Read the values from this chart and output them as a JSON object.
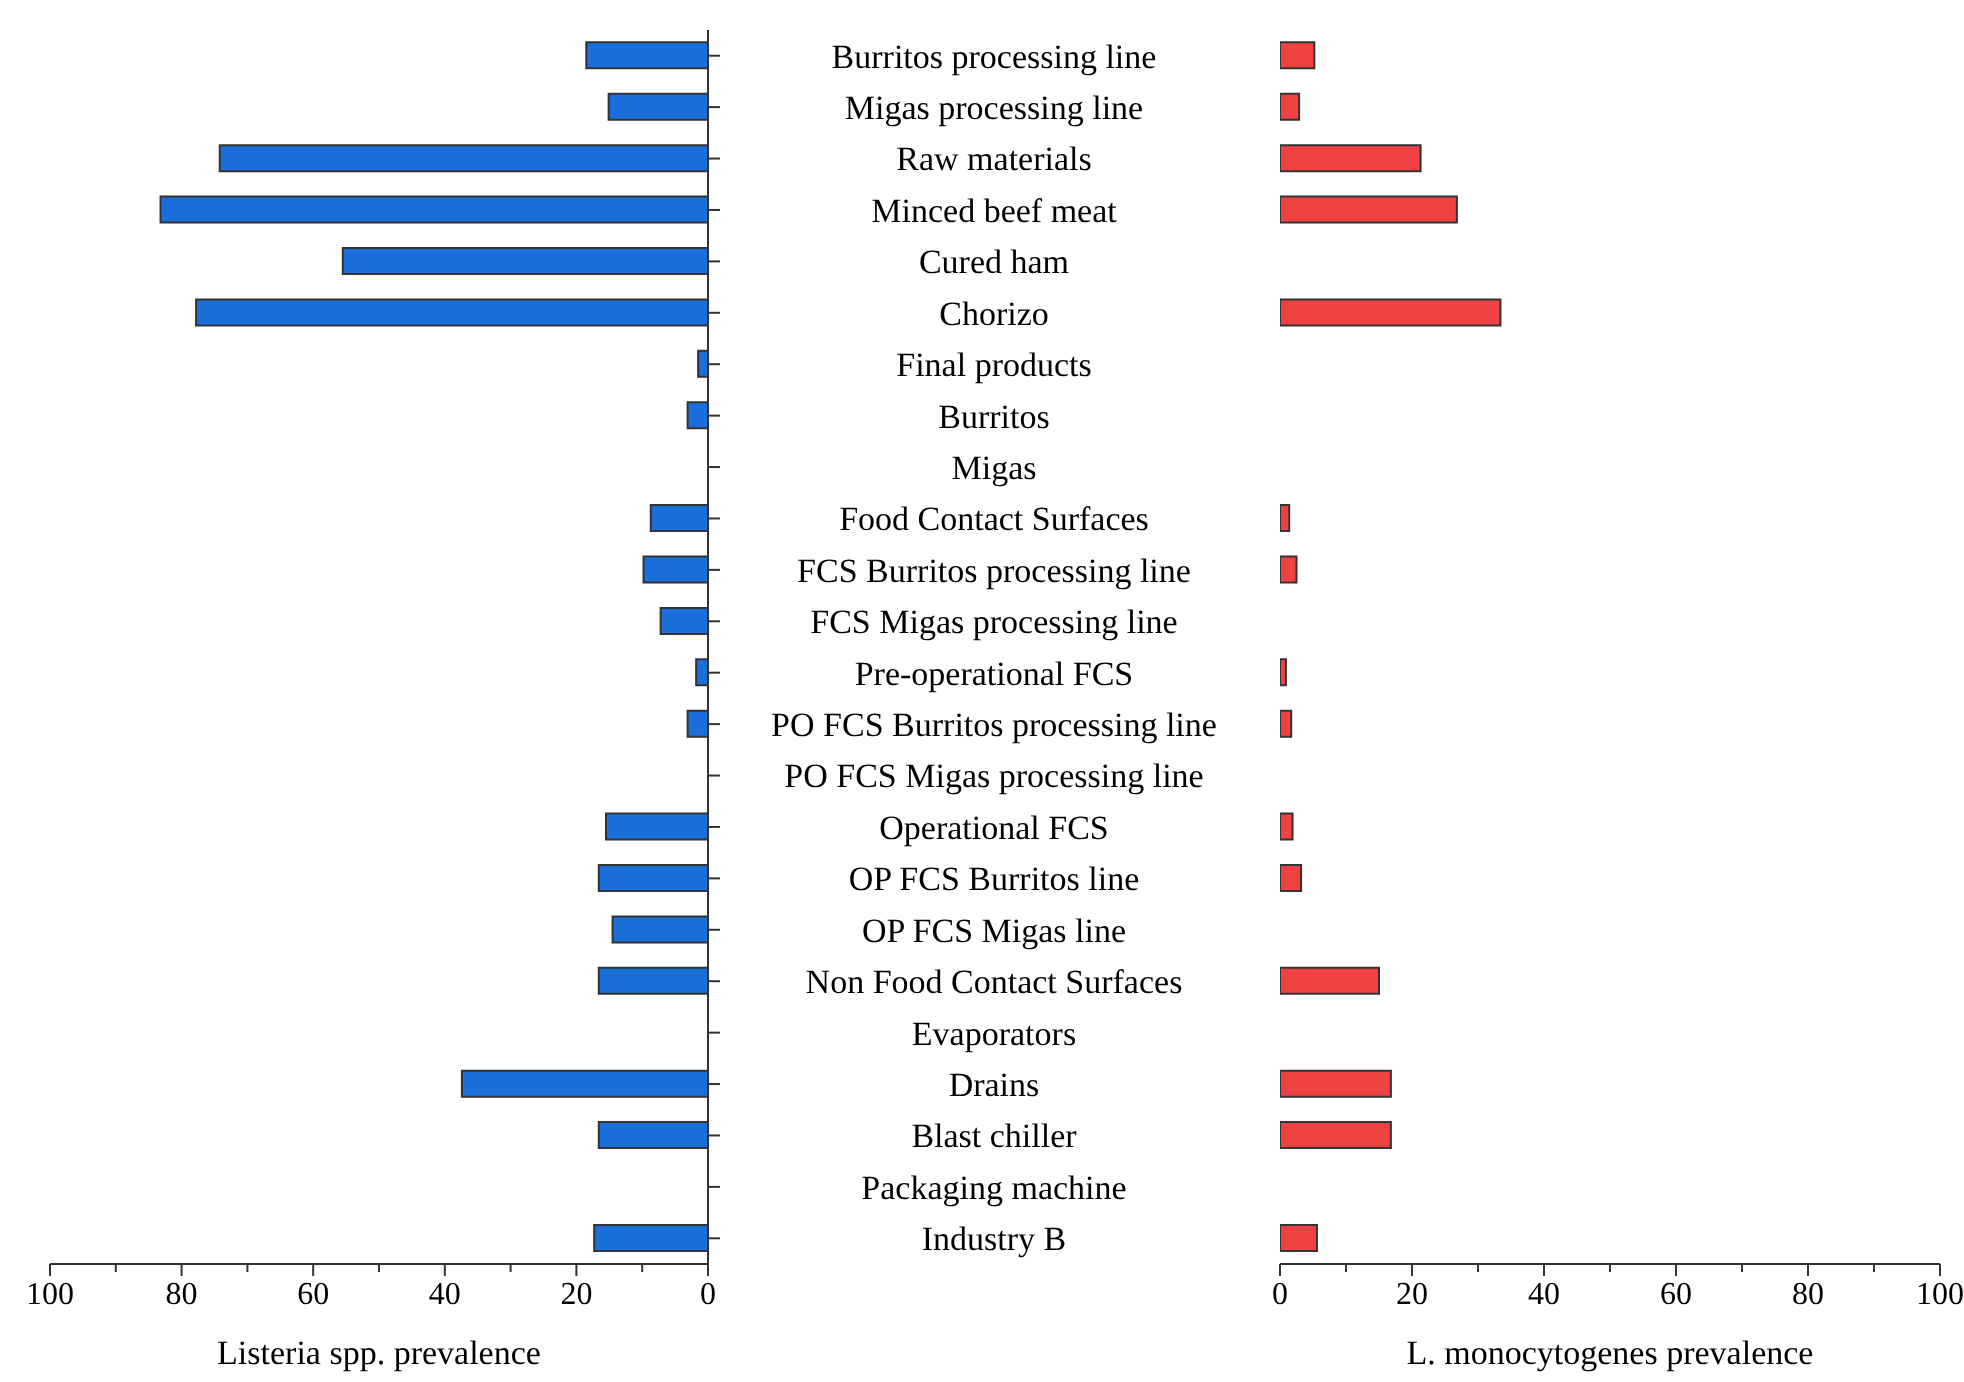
{
  "chart_data": [
    {
      "type": "bar",
      "orientation": "horizontal",
      "xlabel": "Listeria spp. prevalence",
      "color": "#1a6fdb",
      "categories": [
        "Burritos processing line",
        "Migas processing line",
        "Raw materials",
        "Minced beef meat",
        "Cured ham",
        "Chorizo",
        "Final products",
        "Burritos",
        "Migas",
        "Food Contact Surfaces",
        "FCS Burritos processing line",
        "FCS Migas processing line",
        "Pre-operational FCS",
        "PO FCS Burritos processing line",
        "PO FCS Migas processing line",
        "Operational FCS",
        "OP FCS Burritos line",
        "OP FCS Migas line",
        "Non Food Contact Surfaces",
        "Evaporators",
        "Drains",
        "Blast chiller",
        "Packaging machine",
        "Industry B"
      ],
      "values": [
        18.5,
        15.1,
        74.2,
        83.2,
        55.5,
        77.8,
        1.5,
        3.1,
        0,
        8.7,
        9.8,
        7.2,
        1.8,
        3.1,
        0,
        15.5,
        16.6,
        14.5,
        16.6,
        0,
        37.4,
        16.6,
        0,
        17.3
      ],
      "xlim": [
        100,
        0
      ],
      "xticks": [
        100,
        {
          "value": 90,
          "label": null
        },
        80,
        {
          "value": 70,
          "label": null
        },
        60,
        {
          "value": 50,
          "label": null
        },
        40,
        {
          "value": 30,
          "label": null
        },
        20,
        {
          "value": 10,
          "label": null
        },
        0
      ]
    },
    {
      "type": "bar",
      "orientation": "horizontal",
      "xlabel": "L. monocytogenes prevalence",
      "color": "#f04242",
      "tick_labels": "x",
      "categories": [
        null,
        null,
        null,
        null,
        null,
        null,
        null,
        null,
        null,
        null,
        null,
        null,
        null,
        null,
        null,
        null,
        null,
        null,
        null,
        null,
        null,
        null,
        null,
        null
      ],
      "values": [
        5.2,
        2.9,
        21.3,
        26.8,
        0,
        33.4,
        0,
        0,
        0,
        1.4,
        2.5,
        0,
        0.9,
        1.7,
        0,
        1.9,
        3.2,
        0,
        15.0,
        0,
        16.8,
        16.8,
        0,
        5.6
      ],
      "xlim": [
        0,
        100
      ],
      "xticks": [
        0,
        {
          "value": 10,
          "label": null
        },
        20,
        {
          "value": 30,
          "label": null
        },
        40,
        {
          "value": 50,
          "label": null
        },
        60,
        {
          "value": 70,
          "label": null
        },
        80,
        {
          "value": 90,
          "label": null
        },
        100
      ]
    }
  ]
}
